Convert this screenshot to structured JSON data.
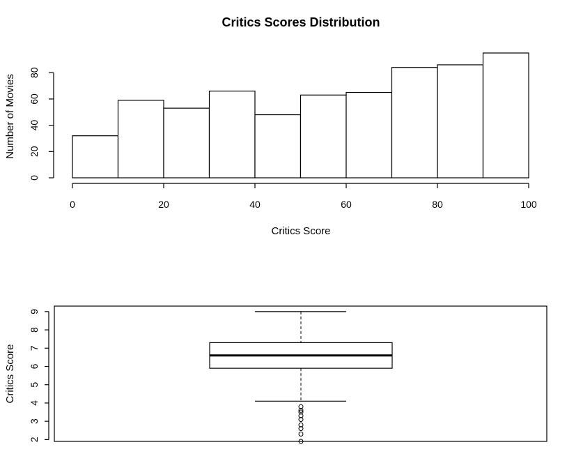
{
  "chart_data": [
    {
      "type": "bar",
      "subtype": "histogram",
      "title": "Critics Scores Distribution",
      "xlabel": "Critics Score",
      "ylabel": "Number of Movies",
      "bins": [
        {
          "start": 0,
          "end": 10,
          "count": 32
        },
        {
          "start": 10,
          "end": 20,
          "count": 59
        },
        {
          "start": 20,
          "end": 30,
          "count": 53
        },
        {
          "start": 30,
          "end": 40,
          "count": 66
        },
        {
          "start": 40,
          "end": 50,
          "count": 48
        },
        {
          "start": 50,
          "end": 60,
          "count": 63
        },
        {
          "start": 60,
          "end": 70,
          "count": 65
        },
        {
          "start": 70,
          "end": 80,
          "count": 84
        },
        {
          "start": 80,
          "end": 90,
          "count": 86
        },
        {
          "start": 90,
          "end": 100,
          "count": 95
        }
      ],
      "xlim": [
        0,
        100
      ],
      "ylim": [
        0,
        95
      ],
      "x_ticks": [
        0,
        20,
        40,
        60,
        80,
        100
      ],
      "y_ticks": [
        0,
        20,
        40,
        60,
        80
      ],
      "grid": false
    },
    {
      "type": "boxplot",
      "ylabel": "Critics Score",
      "ylim": [
        1.9,
        9.3
      ],
      "y_ticks": [
        2,
        3,
        4,
        5,
        6,
        7,
        8,
        9
      ],
      "whisker_low": 4.1,
      "q1": 5.9,
      "median": 6.6,
      "q3": 7.3,
      "whisker_high": 9.0,
      "outliers": [
        3.8,
        3.6,
        3.5,
        3.3,
        3.1,
        2.8,
        2.6,
        2.3,
        1.9
      ],
      "grid": false
    }
  ]
}
